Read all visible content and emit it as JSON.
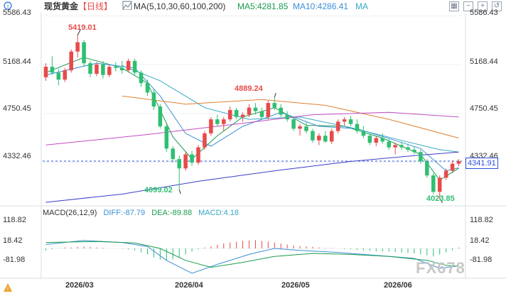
{
  "header": {
    "symbol": "现货黄金",
    "period": "【日线】",
    "ma_label": "MA(5,10,30,60,100,200)",
    "ma5": "MA5:4281.85",
    "ma10": "MA10:4286.41",
    "ma_more": "MA"
  },
  "macd_header": {
    "label": "MACD(26,12,9)",
    "dif": "DIFF:-87.79",
    "dea": "DEA:-89.88",
    "macd": "MACD:4.18"
  },
  "price_axis": [
    "5586.43",
    "5168.44",
    "4750.45",
    "4332.46"
  ],
  "macd_axis": [
    "118.82",
    "18.42",
    "-81.98"
  ],
  "x_labels": [
    "2026/03",
    "2026/04",
    "2026/05",
    "2026/06"
  ],
  "current_price": "4341.91",
  "annotations": {
    "high1": "5419.01",
    "high2": "4889.24",
    "low1": "4099.02",
    "low2": "4023.85"
  },
  "watermark": "FX678",
  "colors": {
    "up": "#e84a4a",
    "down": "#2fbf71",
    "ma5": "#1a9c4f",
    "ma10": "#3a8fd6",
    "ma30": "#36a9c4",
    "ma60": "#e0822f",
    "ma100": "#c24cc2",
    "ma200": "#3b3ec9",
    "last_price": "#2b4de0"
  },
  "chart_data": {
    "type": "candlestick",
    "title": "现货黄金 日线",
    "price_range": [
      3990,
      5600
    ],
    "macd_range": [
      -125,
      150
    ],
    "candles": [
      [
        5060,
        5180,
        5030,
        5150
      ],
      [
        5150,
        5240,
        5080,
        5100
      ],
      [
        5100,
        5130,
        4990,
        5040
      ],
      [
        5040,
        5140,
        5020,
        5120
      ],
      [
        5120,
        5300,
        5100,
        5280
      ],
      [
        5280,
        5420,
        5230,
        5360
      ],
      [
        5360,
        5380,
        5150,
        5180
      ],
      [
        5180,
        5200,
        5060,
        5090
      ],
      [
        5090,
        5190,
        5070,
        5170
      ],
      [
        5170,
        5200,
        5050,
        5080
      ],
      [
        5080,
        5170,
        5060,
        5150
      ],
      [
        5150,
        5190,
        5110,
        5140
      ],
      [
        5140,
        5200,
        5090,
        5120
      ],
      [
        5120,
        5220,
        5100,
        5200
      ],
      [
        5200,
        5220,
        5080,
        5100
      ],
      [
        5100,
        5120,
        4980,
        5010
      ],
      [
        5010,
        5040,
        4900,
        4930
      ],
      [
        4930,
        4960,
        4780,
        4810
      ],
      [
        4810,
        4830,
        4620,
        4640
      ],
      [
        4640,
        4660,
        4420,
        4450
      ],
      [
        4450,
        4470,
        4330,
        4360
      ],
      [
        4360,
        4390,
        4099,
        4280
      ],
      [
        4280,
        4420,
        4260,
        4400
      ],
      [
        4400,
        4430,
        4300,
        4330
      ],
      [
        4330,
        4480,
        4310,
        4460
      ],
      [
        4460,
        4600,
        4440,
        4580
      ],
      [
        4580,
        4720,
        4560,
        4700
      ],
      [
        4700,
        4740,
        4640,
        4660
      ],
      [
        4660,
        4720,
        4600,
        4700
      ],
      [
        4700,
        4810,
        4680,
        4780
      ],
      [
        4780,
        4800,
        4700,
        4720
      ],
      [
        4720,
        4760,
        4680,
        4740
      ],
      [
        4740,
        4830,
        4720,
        4800
      ],
      [
        4800,
        4840,
        4740,
        4770
      ],
      [
        4770,
        4800,
        4700,
        4720
      ],
      [
        4720,
        4860,
        4700,
        4840
      ],
      [
        4840,
        4889,
        4780,
        4800
      ],
      [
        4800,
        4830,
        4720,
        4740
      ],
      [
        4740,
        4770,
        4680,
        4700
      ],
      [
        4700,
        4720,
        4600,
        4620
      ],
      [
        4620,
        4660,
        4560,
        4640
      ],
      [
        4640,
        4680,
        4580,
        4600
      ],
      [
        4600,
        4620,
        4500,
        4520
      ],
      [
        4520,
        4580,
        4480,
        4560
      ],
      [
        4560,
        4600,
        4500,
        4510
      ],
      [
        4510,
        4620,
        4490,
        4600
      ],
      [
        4600,
        4700,
        4580,
        4680
      ],
      [
        4680,
        4720,
        4640,
        4700
      ],
      [
        4700,
        4730,
        4640,
        4660
      ],
      [
        4660,
        4700,
        4580,
        4600
      ],
      [
        4600,
        4640,
        4540,
        4560
      ],
      [
        4560,
        4580,
        4480,
        4500
      ],
      [
        4500,
        4560,
        4470,
        4540
      ],
      [
        4540,
        4580,
        4490,
        4510
      ],
      [
        4510,
        4530,
        4440,
        4460
      ],
      [
        4460,
        4500,
        4400,
        4480
      ],
      [
        4480,
        4510,
        4440,
        4460
      ],
      [
        4460,
        4480,
        4420,
        4440
      ],
      [
        4440,
        4470,
        4400,
        4420
      ],
      [
        4420,
        4440,
        4320,
        4340
      ],
      [
        4340,
        4360,
        4200,
        4220
      ],
      [
        4220,
        4240,
        4060,
        4080
      ],
      [
        4080,
        4220,
        4023,
        4200
      ],
      [
        4200,
        4280,
        4180,
        4260
      ],
      [
        4260,
        4350,
        4240,
        4320
      ],
      [
        4320,
        4360,
        4300,
        4342
      ]
    ],
    "ma": [
      {
        "name": "MA5",
        "values": [
          [
            0,
            5100
          ],
          [
            6,
            5230
          ],
          [
            12,
            5140
          ],
          [
            16,
            5010
          ],
          [
            20,
            4550
          ],
          [
            23,
            4360
          ],
          [
            27,
            4560
          ],
          [
            31,
            4720
          ],
          [
            36,
            4800
          ],
          [
            41,
            4650
          ],
          [
            47,
            4640
          ],
          [
            53,
            4540
          ],
          [
            59,
            4400
          ],
          [
            62,
            4180
          ],
          [
            65,
            4282
          ]
        ]
      },
      {
        "name": "MA10",
        "values": [
          [
            0,
            5080
          ],
          [
            8,
            5180
          ],
          [
            14,
            5140
          ],
          [
            18,
            4900
          ],
          [
            22,
            4580
          ],
          [
            26,
            4470
          ],
          [
            31,
            4640
          ],
          [
            37,
            4760
          ],
          [
            43,
            4640
          ],
          [
            49,
            4620
          ],
          [
            55,
            4520
          ],
          [
            59,
            4450
          ],
          [
            63,
            4260
          ],
          [
            65,
            4286
          ]
        ]
      },
      {
        "name": "MA30",
        "values": [
          [
            12,
            5160
          ],
          [
            18,
            5030
          ],
          [
            25,
            4800
          ],
          [
            32,
            4700
          ],
          [
            40,
            4720
          ],
          [
            48,
            4630
          ],
          [
            56,
            4520
          ],
          [
            62,
            4440
          ],
          [
            65,
            4420
          ]
        ]
      },
      {
        "name": "MA60",
        "values": [
          [
            12,
            4900
          ],
          [
            22,
            4830
          ],
          [
            34,
            4870
          ],
          [
            44,
            4820
          ],
          [
            54,
            4700
          ],
          [
            65,
            4540
          ]
        ]
      },
      {
        "name": "MA100",
        "values": [
          [
            0,
            4480
          ],
          [
            16,
            4570
          ],
          [
            30,
            4660
          ],
          [
            42,
            4740
          ],
          [
            54,
            4760
          ],
          [
            65,
            4720
          ]
        ]
      },
      {
        "name": "MA200",
        "values": [
          [
            0,
            3990
          ],
          [
            12,
            4060
          ],
          [
            24,
            4170
          ],
          [
            36,
            4260
          ],
          [
            48,
            4340
          ],
          [
            58,
            4390
          ],
          [
            65,
            4420
          ]
        ]
      }
    ],
    "macd": {
      "diff": [
        [
          0,
          20
        ],
        [
          6,
          40
        ],
        [
          12,
          30
        ],
        [
          16,
          10
        ],
        [
          19,
          -60
        ],
        [
          23,
          -125
        ],
        [
          27,
          -80
        ],
        [
          32,
          -30
        ],
        [
          36,
          0
        ],
        [
          40,
          -10
        ],
        [
          46,
          -20
        ],
        [
          52,
          -35
        ],
        [
          58,
          -50
        ],
        [
          62,
          -100
        ],
        [
          65,
          -88
        ]
      ],
      "dea": [
        [
          0,
          30
        ],
        [
          8,
          35
        ],
        [
          14,
          28
        ],
        [
          18,
          0
        ],
        [
          22,
          -60
        ],
        [
          26,
          -95
        ],
        [
          31,
          -70
        ],
        [
          36,
          -40
        ],
        [
          42,
          -25
        ],
        [
          48,
          -30
        ],
        [
          54,
          -40
        ],
        [
          60,
          -60
        ],
        [
          63,
          -85
        ],
        [
          65,
          -90
        ]
      ],
      "hist": [
        -10,
        -5,
        2,
        5,
        5,
        8,
        10,
        8,
        5,
        3,
        0,
        0,
        -2,
        -5,
        -10,
        -20,
        -30,
        -45,
        -55,
        -60,
        -55,
        -45,
        -30,
        -15,
        -5,
        5,
        10,
        18,
        25,
        30,
        35,
        38,
        40,
        42,
        38,
        35,
        30,
        25,
        20,
        15,
        12,
        10,
        8,
        5,
        3,
        2,
        0,
        -3,
        -5,
        -8,
        -10,
        -12,
        -14,
        -15,
        -16,
        -18,
        -20,
        -22,
        -25,
        -30,
        -35,
        -40,
        -30,
        -20,
        -10,
        4
      ]
    }
  }
}
